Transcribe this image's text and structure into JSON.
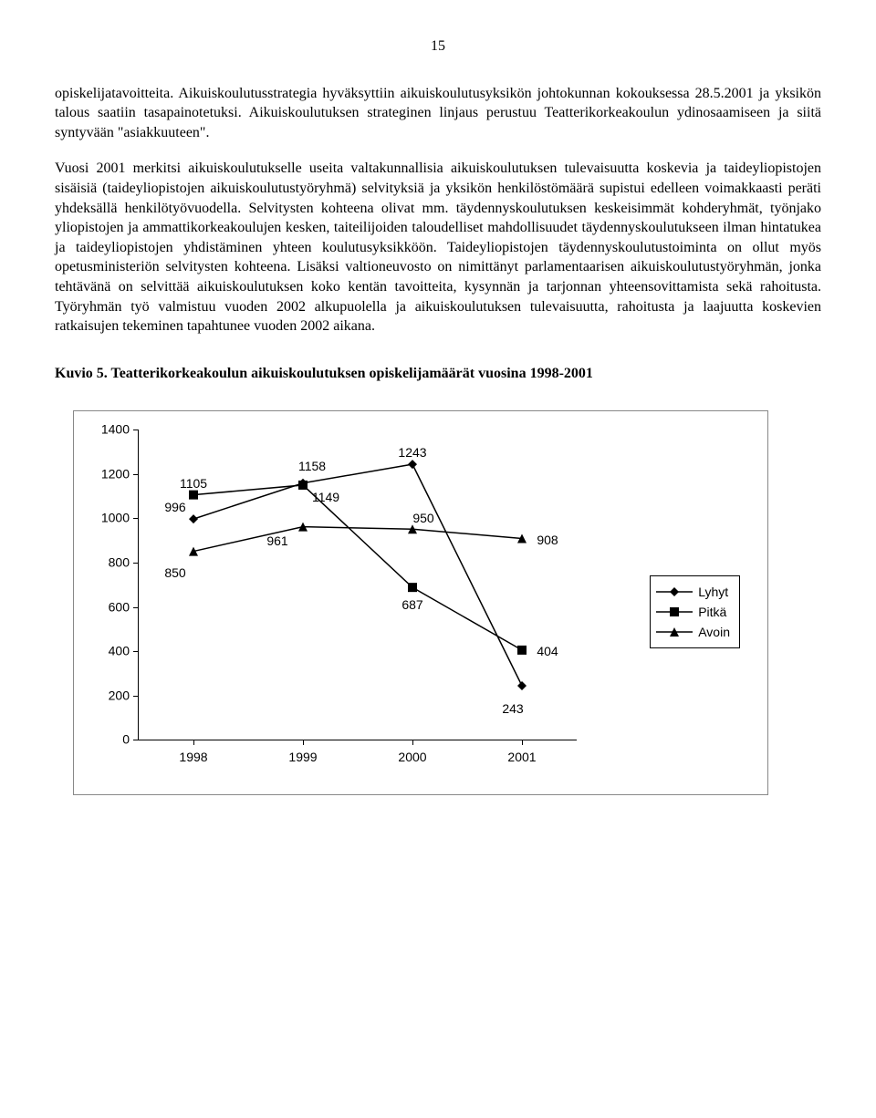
{
  "pageNumber": "15",
  "para1": "opiskelijatavoitteita. Aikuiskoulutusstrategia hyväksyttiin aikuiskoulutusyksikön johtokunnan kokouksessa 28.5.2001 ja yksikön talous saatiin tasapainotetuksi. Aikuiskoulutuksen strateginen linjaus perustuu Teatterikorkeakoulun ydinosaamiseen ja siitä syntyvään \"asiakkuuteen\".",
  "para2": "Vuosi 2001 merkitsi aikuiskoulutukselle useita valtakunnallisia aikuiskoulutuksen tulevaisuutta koskevia ja taideyliopistojen sisäisiä (taideyliopistojen aikuiskoulutustyöryhmä) selvityksiä ja yksikön henkilöstömäärä supistui edelleen voimakkaasti peräti yhdeksällä henkilötyövuodella. Selvitysten kohteena olivat mm. täydennyskoulutuksen keskeisimmät kohderyhmät, työnjako yliopistojen ja ammattikorkeakoulujen kesken, taiteilijoiden taloudelliset mahdollisuudet täydennyskoulutukseen ilman hintatukea ja taideyliopistojen yhdistäminen yhteen koulutusyksikköön. Taideyliopistojen täydennyskoulutustoiminta on ollut myös opetusministeriön selvitysten kohteena. Lisäksi valtioneuvosto on nimittänyt parlamentaarisen aikuiskoulutustyöryhmän, jonka tehtävänä on selvittää aikuiskoulutuksen koko kentän tavoitteita, kysynnän ja tarjonnan yhteensovittamista sekä rahoitusta. Työryhmän työ valmistuu vuoden 2002 alkupuolella ja aikuiskoulutuksen tulevaisuutta, rahoitusta ja laajuutta koskevien ratkaisujen tekeminen tapahtunee vuoden 2002 aikana.",
  "heading": "Kuvio 5. Teatterikorkeakoulun aikuiskoulutuksen opiskelijamäärät vuosina 1998-2001",
  "chart": {
    "type": "line",
    "ylim": [
      0,
      1400
    ],
    "ytick_step": 200,
    "categories": [
      "1998",
      "1999",
      "2000",
      "2001"
    ],
    "series": [
      {
        "name": "Lyhyt",
        "marker": "diamond",
        "values": [
          996,
          1158,
          1243,
          243
        ],
        "label_offset": [
          [
            -20,
            -22
          ],
          [
            10,
            -28
          ],
          [
            0,
            -22
          ],
          [
            -10,
            16
          ]
        ]
      },
      {
        "name": "Pitkä",
        "marker": "square",
        "values": [
          1105,
          1149,
          687,
          404
        ],
        "label_offset": [
          [
            0,
            -22
          ],
          [
            25,
            4
          ],
          [
            0,
            10
          ],
          [
            28,
            -8
          ]
        ]
      },
      {
        "name": "Avoin",
        "marker": "triangle",
        "values": [
          850,
          961,
          950,
          908
        ],
        "label_offset": [
          [
            -20,
            14
          ],
          [
            -28,
            6
          ],
          [
            12,
            -22
          ],
          [
            28,
            -8
          ]
        ]
      }
    ],
    "line_color": "#000000",
    "marker_fill": "#000000",
    "background": "#ffffff"
  }
}
